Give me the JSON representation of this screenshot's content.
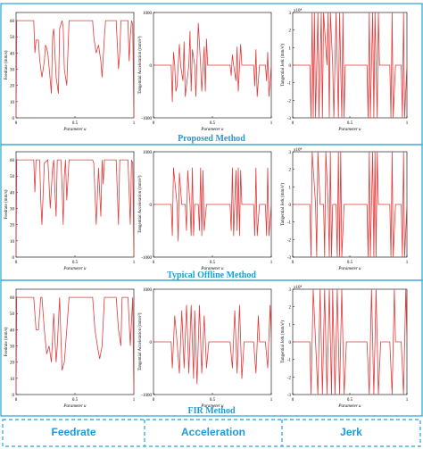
{
  "footer": {
    "labels": [
      "Feedrate",
      "Acceleration",
      "Jerk"
    ]
  },
  "colors": {
    "trace": "#e23a3a",
    "method_title": "#1f9bd4",
    "frame_border": "#25a0d8",
    "axis": "#000000"
  },
  "rows": [
    {
      "title": "Proposed Method"
    },
    {
      "title": "Typical Offline Method"
    },
    {
      "title": "FIR Method"
    }
  ],
  "chart_data": [
    {
      "type": "line",
      "row": 0,
      "col": 0,
      "xlabel": "Parameter u",
      "ylabel": "Feedrate (mm/s)",
      "xlim": [
        0,
        1
      ],
      "ylim": [
        0,
        65
      ],
      "xticks": [
        "0",
        "0.5",
        "1"
      ],
      "yticks": [
        "0",
        "10",
        "20",
        "30",
        "40",
        "50",
        "60"
      ],
      "series": [
        {
          "x": [
            0,
            0.005,
            0.15,
            0.16,
            0.17,
            0.19,
            0.2,
            0.22,
            0.24,
            0.25,
            0.26,
            0.27,
            0.3,
            0.31,
            0.32,
            0.34,
            0.36,
            0.37,
            0.39,
            0.4,
            0.41,
            0.43,
            0.44,
            0.45,
            0.5,
            0.65,
            0.66,
            0.67,
            0.68,
            0.7,
            0.72,
            0.73,
            0.75,
            0.76,
            0.85,
            0.86,
            0.87,
            0.88,
            0.89,
            0.9,
            0.92,
            0.95,
            0.96,
            0.97,
            0.98,
            0.99,
            1
          ],
          "y": [
            0,
            60,
            60,
            40,
            48,
            48,
            36,
            25,
            35,
            45,
            43,
            40,
            15,
            50,
            55,
            25,
            15,
            55,
            60,
            56,
            30,
            20,
            40,
            60,
            60,
            60,
            50,
            45,
            40,
            45,
            35,
            25,
            50,
            60,
            60,
            45,
            30,
            40,
            60,
            60,
            60,
            60,
            35,
            50,
            60,
            58,
            0
          ]
        }
      ]
    },
    {
      "type": "line",
      "row": 0,
      "col": 1,
      "xlabel": "Parameter u",
      "ylabel": "Tangential Acceleration (mm/s²)",
      "xlim": [
        0,
        1
      ],
      "ylim": [
        -1000,
        1000
      ],
      "xticks": [
        "0",
        "0.5",
        "1"
      ],
      "yticks": [
        "-1000",
        "0",
        "1000"
      ],
      "series": [
        {
          "x": [
            0,
            0.15,
            0.16,
            0.17,
            0.18,
            0.19,
            0.2,
            0.22,
            0.23,
            0.25,
            0.26,
            0.27,
            0.3,
            0.31,
            0.32,
            0.33,
            0.35,
            0.36,
            0.38,
            0.4,
            0.41,
            0.43,
            0.44,
            0.45,
            0.46,
            0.65,
            0.66,
            0.67,
            0.68,
            0.7,
            0.71,
            0.72,
            0.74,
            0.75,
            0.76,
            0.85,
            0.86,
            0.87,
            0.88,
            0.9,
            0.95,
            0.96,
            0.97,
            0.98,
            1
          ],
          "y": [
            0,
            0,
            -700,
            250,
            0,
            -500,
            -400,
            400,
            0,
            -300,
            450,
            -600,
            0,
            650,
            -500,
            300,
            0,
            -600,
            800,
            0,
            -500,
            350,
            -500,
            500,
            0,
            0,
            -200,
            200,
            0,
            -300,
            350,
            -500,
            400,
            0,
            0,
            0,
            -400,
            300,
            -600,
            0,
            0,
            -300,
            250,
            -600,
            0
          ]
        }
      ]
    },
    {
      "type": "line",
      "row": 0,
      "col": 2,
      "xlabel": "Parameter u",
      "ylabel": "Tangential Jerk (mm/s³)",
      "xlim": [
        0,
        1
      ],
      "ylim": [
        -3,
        3
      ],
      "xticks": [
        "0",
        "0.5",
        "1"
      ],
      "yticks": [
        "-3",
        "-2",
        "-1",
        "0",
        "1",
        "2",
        "3"
      ],
      "scale_note": "x10⁴",
      "series": [
        {
          "x": [
            0,
            0.15,
            0.16,
            0.17,
            0.18,
            0.19,
            0.2,
            0.22,
            0.23,
            0.25,
            0.26,
            0.27,
            0.3,
            0.31,
            0.32,
            0.33,
            0.35,
            0.36,
            0.38,
            0.4,
            0.41,
            0.43,
            0.44,
            0.45,
            0.46,
            0.65,
            0.66,
            0.67,
            0.68,
            0.7,
            0.71,
            0.72,
            0.74,
            0.75,
            0.76,
            0.85,
            0.86,
            0.87,
            0.88,
            0.9,
            0.95,
            0.96,
            0.97,
            0.98,
            1
          ],
          "y": [
            0,
            0,
            -3,
            3,
            -3,
            3,
            -3,
            3,
            -3,
            3,
            -3,
            3,
            0,
            3,
            -3,
            3,
            0,
            -3,
            3,
            -3,
            3,
            -3,
            3,
            -3,
            0,
            0,
            -3,
            3,
            -3,
            3,
            -3,
            3,
            -3,
            3,
            0,
            0,
            -3,
            3,
            -3,
            0,
            0,
            -3,
            3,
            -3,
            0
          ]
        }
      ]
    },
    {
      "type": "line",
      "row": 1,
      "col": 0,
      "xlabel": "Parameter u",
      "ylabel": "Feedrate (mm/s)",
      "xlim": [
        0,
        1
      ],
      "ylim": [
        0,
        65
      ],
      "xticks": [
        "0",
        "0.5",
        "1"
      ],
      "yticks": [
        "0",
        "10",
        "20",
        "30",
        "40",
        "50",
        "60"
      ],
      "series": [
        {
          "x": [
            0,
            0.005,
            0.15,
            0.16,
            0.17,
            0.2,
            0.21,
            0.22,
            0.24,
            0.27,
            0.28,
            0.29,
            0.31,
            0.32,
            0.33,
            0.34,
            0.35,
            0.38,
            0.39,
            0.4,
            0.41,
            0.42,
            0.43,
            0.45,
            0.5,
            0.65,
            0.66,
            0.67,
            0.68,
            0.7,
            0.71,
            0.72,
            0.73,
            0.74,
            0.75,
            0.8,
            0.85,
            0.86,
            0.87,
            0.88,
            0.9,
            0.92,
            0.95,
            0.96,
            0.97,
            0.98,
            0.99,
            1
          ],
          "y": [
            0,
            60,
            60,
            40,
            60,
            60,
            35,
            20,
            58,
            60,
            45,
            30,
            55,
            60,
            40,
            25,
            60,
            60,
            45,
            20,
            50,
            60,
            35,
            60,
            60,
            60,
            58,
            40,
            20,
            55,
            40,
            25,
            60,
            45,
            60,
            60,
            60,
            40,
            20,
            60,
            60,
            60,
            60,
            40,
            20,
            60,
            58,
            0
          ]
        }
      ]
    },
    {
      "type": "line",
      "row": 1,
      "col": 1,
      "xlabel": "Parameter u",
      "ylabel": "Tangential Acceleration (mm/s²)",
      "xlim": [
        0,
        1
      ],
      "ylim": [
        -1000,
        1000
      ],
      "xticks": [
        "0",
        "0.5",
        "1"
      ],
      "yticks": [
        "-1000",
        "0",
        "1000"
      ],
      "series": [
        {
          "x": [
            0,
            0.15,
            0.16,
            0.17,
            0.2,
            0.21,
            0.22,
            0.24,
            0.27,
            0.28,
            0.29,
            0.31,
            0.32,
            0.33,
            0.34,
            0.35,
            0.38,
            0.39,
            0.4,
            0.41,
            0.42,
            0.43,
            0.45,
            0.65,
            0.66,
            0.67,
            0.68,
            0.7,
            0.71,
            0.72,
            0.73,
            0.74,
            0.75,
            0.85,
            0.86,
            0.87,
            0.88,
            0.9,
            0.95,
            0.96,
            0.97,
            0.98,
            1
          ],
          "y": [
            0,
            0,
            -600,
            700,
            0,
            -700,
            600,
            0,
            0,
            -500,
            650,
            0,
            -600,
            700,
            -600,
            0,
            0,
            -500,
            700,
            -600,
            650,
            -500,
            0,
            0,
            -500,
            700,
            -600,
            650,
            -500,
            700,
            -600,
            650,
            0,
            0,
            -600,
            700,
            -600,
            0,
            0,
            -600,
            700,
            -600,
            0
          ]
        }
      ]
    },
    {
      "type": "line",
      "row": 1,
      "col": 2,
      "xlabel": "Parameter u",
      "ylabel": "Tangential Jerk (mm/s³)",
      "xlim": [
        0,
        1
      ],
      "ylim": [
        -3,
        3
      ],
      "xticks": [
        "0",
        "0.5",
        "1"
      ],
      "yticks": [
        "-3",
        "-2",
        "-1",
        "0",
        "1",
        "2",
        "3"
      ],
      "scale_note": "x10⁴",
      "series": [
        {
          "x": [
            0,
            0.15,
            0.16,
            0.17,
            0.2,
            0.21,
            0.22,
            0.24,
            0.27,
            0.28,
            0.29,
            0.31,
            0.32,
            0.33,
            0.34,
            0.35,
            0.38,
            0.39,
            0.4,
            0.41,
            0.42,
            0.43,
            0.45,
            0.65,
            0.66,
            0.67,
            0.68,
            0.7,
            0.71,
            0.72,
            0.73,
            0.74,
            0.75,
            0.85,
            0.86,
            0.87,
            0.88,
            0.9,
            0.95,
            0.96,
            0.97,
            0.98,
            1
          ],
          "y": [
            0,
            0,
            -3,
            3,
            0,
            -3,
            3,
            0,
            0,
            -3,
            3,
            0,
            -3,
            3,
            -3,
            0,
            0,
            -3,
            3,
            -3,
            3,
            -3,
            0,
            0,
            -3,
            3,
            -3,
            3,
            -3,
            3,
            -3,
            3,
            0,
            0,
            -3,
            3,
            -3,
            0,
            0,
            -3,
            3,
            -3,
            0
          ]
        }
      ]
    },
    {
      "type": "line",
      "row": 2,
      "col": 0,
      "xlabel": "Parameter u",
      "ylabel": "Feedrate (mm/s)",
      "xlim": [
        0,
        1
      ],
      "ylim": [
        0,
        65
      ],
      "xticks": [
        "0",
        "0.5",
        "1"
      ],
      "yticks": [
        "0",
        "10",
        "20",
        "30",
        "40",
        "50",
        "60"
      ],
      "series": [
        {
          "x": [
            0,
            0.005,
            0.15,
            0.17,
            0.19,
            0.21,
            0.22,
            0.24,
            0.26,
            0.28,
            0.3,
            0.32,
            0.34,
            0.35,
            0.37,
            0.39,
            0.41,
            0.43,
            0.45,
            0.5,
            0.65,
            0.67,
            0.69,
            0.71,
            0.73,
            0.75,
            0.76,
            0.85,
            0.87,
            0.89,
            0.9,
            0.95,
            0.97,
            0.99,
            1
          ],
          "y": [
            0,
            60,
            60,
            40,
            40,
            60,
            60,
            40,
            25,
            30,
            20,
            50,
            20,
            30,
            60,
            15,
            20,
            40,
            60,
            60,
            60,
            40,
            30,
            22,
            30,
            60,
            60,
            60,
            40,
            30,
            60,
            60,
            30,
            60,
            0
          ]
        }
      ]
    },
    {
      "type": "line",
      "row": 2,
      "col": 1,
      "xlabel": "Parameter u",
      "ylabel": "Tangential Acceleration (mm/s²)",
      "xlim": [
        0,
        1
      ],
      "ylim": [
        -1000,
        1000
      ],
      "xticks": [
        "0",
        "0.5",
        "1"
      ],
      "yticks": [
        "-1000",
        "0",
        "1000"
      ],
      "series": [
        {
          "x": [
            0,
            0.15,
            0.16,
            0.18,
            0.2,
            0.22,
            0.24,
            0.26,
            0.28,
            0.3,
            0.32,
            0.34,
            0.35,
            0.37,
            0.39,
            0.41,
            0.43,
            0.45,
            0.47,
            0.65,
            0.67,
            0.69,
            0.71,
            0.73,
            0.75,
            0.77,
            0.85,
            0.87,
            0.89,
            0.9,
            0.95,
            0.97,
            0.99,
            1
          ],
          "y": [
            0,
            0,
            -500,
            500,
            0,
            -600,
            600,
            -500,
            700,
            -600,
            700,
            -700,
            600,
            -800,
            700,
            -600,
            500,
            -500,
            0,
            0,
            -500,
            600,
            -600,
            700,
            -700,
            0,
            0,
            -600,
            500,
            0,
            0,
            -500,
            700,
            0
          ]
        }
      ]
    },
    {
      "type": "line",
      "row": 2,
      "col": 2,
      "xlabel": "Parameter u",
      "ylabel": "Tangential Jerk (mm/s³)",
      "xlim": [
        0,
        1
      ],
      "ylim": [
        -3,
        3
      ],
      "xticks": [
        "0",
        "0.5",
        "1"
      ],
      "yticks": [
        "-3",
        "-2",
        "-1",
        "0",
        "1",
        "2",
        "3"
      ],
      "scale_note": "x10⁴",
      "series": [
        {
          "x": [
            0,
            0.15,
            0.16,
            0.18,
            0.2,
            0.22,
            0.24,
            0.26,
            0.28,
            0.3,
            0.32,
            0.34,
            0.35,
            0.37,
            0.39,
            0.41,
            0.43,
            0.45,
            0.47,
            0.65,
            0.67,
            0.69,
            0.71,
            0.73,
            0.75,
            0.77,
            0.85,
            0.87,
            0.89,
            0.9,
            0.95,
            0.97,
            0.99,
            1
          ],
          "y": [
            0,
            0,
            -3,
            3,
            0,
            -3,
            3,
            -3,
            3,
            -3,
            3,
            -3,
            3,
            -3,
            3,
            -3,
            3,
            -3,
            0,
            0,
            -3,
            3,
            -3,
            3,
            -3,
            0,
            0,
            -3,
            3,
            0,
            0,
            -3,
            3,
            0
          ]
        }
      ]
    }
  ]
}
